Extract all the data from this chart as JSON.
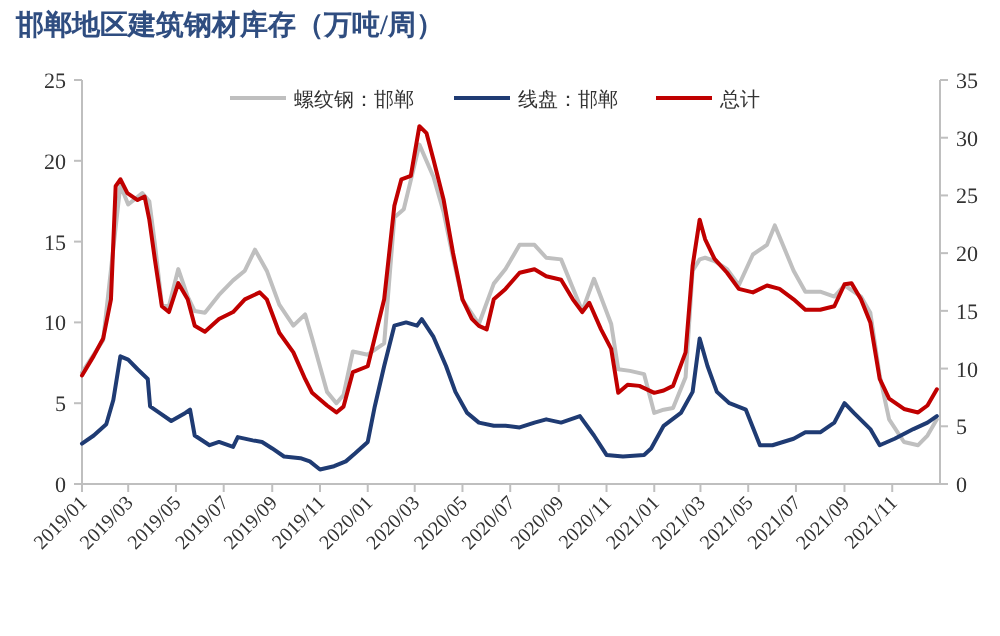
{
  "chart_data": {
    "type": "line",
    "title": "邯郸地区建筑钢材库存（万吨/周）",
    "xlim": [
      "2019-01-01",
      "2022-01-01"
    ],
    "xticks": [
      {
        "value": "2019-01",
        "label": "2019/01"
      },
      {
        "value": "2019-03",
        "label": "2019/03"
      },
      {
        "value": "2019-05",
        "label": "2019/05"
      },
      {
        "value": "2019-07",
        "label": "2019/07"
      },
      {
        "value": "2019-09",
        "label": "2019/09"
      },
      {
        "value": "2019-11",
        "label": "2019/11"
      },
      {
        "value": "2020-01",
        "label": "2020/01"
      },
      {
        "value": "2020-03",
        "label": "2020/03"
      },
      {
        "value": "2020-05",
        "label": "2020/05"
      },
      {
        "value": "2020-07",
        "label": "2020/07"
      },
      {
        "value": "2020-09",
        "label": "2020/09"
      },
      {
        "value": "2020-11",
        "label": "2020/11"
      },
      {
        "value": "2021-01",
        "label": "2021/01"
      },
      {
        "value": "2021-03",
        "label": "2021/03"
      },
      {
        "value": "2021-05",
        "label": "2021/05"
      },
      {
        "value": "2021-07",
        "label": "2021/07"
      },
      {
        "value": "2021-09",
        "label": "2021/09"
      },
      {
        "value": "2021-11",
        "label": "2021/11"
      }
    ],
    "ylim": [
      0,
      25
    ],
    "yticks": [
      0,
      5,
      10,
      15,
      20,
      25
    ],
    "y2lim": [
      0,
      35
    ],
    "y2ticks": [
      0,
      5,
      10,
      15,
      20,
      25,
      30,
      35
    ],
    "legend": "top",
    "grid": false,
    "series": [
      {
        "name": "螺纹钢：邯郸",
        "color": "#bfbfbf",
        "x": [
          "2019-01-01",
          "2019-01-28",
          "2019-02-19",
          "2019-03-01",
          "2019-03-19",
          "2019-03-28",
          "2019-04-04",
          "2019-04-13",
          "2019-04-22",
          "2019-05-04",
          "2019-05-16",
          "2019-05-25",
          "2019-06-07",
          "2019-06-25",
          "2019-07-13",
          "2019-07-28",
          "2019-08-10",
          "2019-08-25",
          "2019-09-10",
          "2019-09-28",
          "2019-10-13",
          "2019-10-22",
          "2019-11-10",
          "2019-11-22",
          "2019-12-01",
          "2019-12-13",
          "2020-01-01",
          "2020-01-22",
          "2020-02-04",
          "2020-02-16",
          "2020-03-07",
          "2020-03-25",
          "2020-04-07",
          "2020-04-19",
          "2020-05-01",
          "2020-05-22",
          "2020-06-10",
          "2020-06-25",
          "2020-07-13",
          "2020-08-01",
          "2020-08-16",
          "2020-09-04",
          "2020-10-01",
          "2020-10-16",
          "2020-11-07",
          "2020-11-16",
          "2020-12-01",
          "2020-12-19",
          "2021-01-01",
          "2021-01-13",
          "2021-01-25",
          "2021-02-10",
          "2021-02-19",
          "2021-02-28",
          "2021-03-07",
          "2021-03-19",
          "2021-04-04",
          "2021-04-19",
          "2021-05-07",
          "2021-05-25",
          "2021-06-04",
          "2021-06-28",
          "2021-07-13",
          "2021-08-01",
          "2021-08-19",
          "2021-09-01",
          "2021-09-22",
          "2021-10-04",
          "2021-10-16",
          "2021-10-28",
          "2021-11-16",
          "2021-12-04",
          "2021-12-16",
          "2021-12-28"
        ],
        "values": [
          6.9,
          8.9,
          18.5,
          17.3,
          18.0,
          17.5,
          14.9,
          11.1,
          11.0,
          13.3,
          11.6,
          10.7,
          10.6,
          11.7,
          12.6,
          13.2,
          14.5,
          13.2,
          11.1,
          9.8,
          10.5,
          9.0,
          5.7,
          5.0,
          5.5,
          8.2,
          8.0,
          8.7,
          16.5,
          17.0,
          21.0,
          19.0,
          16.8,
          14.0,
          11.4,
          9.9,
          12.4,
          13.3,
          14.8,
          14.8,
          14.0,
          13.9,
          10.7,
          12.7,
          9.9,
          7.1,
          7.0,
          6.8,
          4.4,
          4.6,
          4.7,
          6.6,
          13.2,
          13.9,
          14.0,
          13.8,
          13.3,
          12.3,
          14.2,
          14.8,
          16.0,
          13.2,
          11.9,
          11.9,
          11.6,
          12.3,
          11.6,
          10.6,
          6.7,
          4.0,
          2.6,
          2.4,
          3.0,
          4.0
        ]
      },
      {
        "name": "线盘：邯郸",
        "color": "#1f3b73",
        "x": [
          "2019-01-01",
          "2019-01-16",
          "2019-02-01",
          "2019-02-10",
          "2019-02-19",
          "2019-03-01",
          "2019-03-13",
          "2019-03-26",
          "2019-03-29",
          "2019-04-10",
          "2019-04-25",
          "2019-05-13",
          "2019-05-19",
          "2019-05-25",
          "2019-06-13",
          "2019-06-25",
          "2019-07-13",
          "2019-07-19",
          "2019-08-07",
          "2019-08-19",
          "2019-09-01",
          "2019-09-16",
          "2019-10-07",
          "2019-10-19",
          "2019-11-01",
          "2019-11-19",
          "2019-12-04",
          "2019-12-16",
          "2020-01-01",
          "2020-01-10",
          "2020-01-22",
          "2020-02-04",
          "2020-02-19",
          "2020-03-04",
          "2020-03-10",
          "2020-03-25",
          "2020-04-10",
          "2020-04-22",
          "2020-05-07",
          "2020-05-22",
          "2020-06-10",
          "2020-06-25",
          "2020-07-13",
          "2020-08-01",
          "2020-08-16",
          "2020-09-04",
          "2020-09-28",
          "2020-10-16",
          "2020-11-01",
          "2020-11-22",
          "2020-12-19",
          "2020-12-28",
          "2021-01-13",
          "2021-02-04",
          "2021-02-19",
          "2021-02-28",
          "2021-03-10",
          "2021-03-22",
          "2021-04-07",
          "2021-04-28",
          "2021-05-16",
          "2021-06-01",
          "2021-06-28",
          "2021-07-13",
          "2021-08-01",
          "2021-08-19",
          "2021-09-01",
          "2021-09-13",
          "2021-10-04",
          "2021-10-16",
          "2021-11-04",
          "2021-11-28",
          "2021-12-16",
          "2021-12-28"
        ],
        "values": [
          2.5,
          3.0,
          3.7,
          5.2,
          7.9,
          7.7,
          7.1,
          6.5,
          4.8,
          4.4,
          3.9,
          4.4,
          4.6,
          3.0,
          2.4,
          2.6,
          2.3,
          2.9,
          2.7,
          2.6,
          2.2,
          1.7,
          1.6,
          1.4,
          0.9,
          1.1,
          1.4,
          1.9,
          2.6,
          4.8,
          7.3,
          9.8,
          10.0,
          9.8,
          10.2,
          9.1,
          7.3,
          5.7,
          4.4,
          3.8,
          3.6,
          3.6,
          3.5,
          3.8,
          4.0,
          3.8,
          4.2,
          3.0,
          1.8,
          1.7,
          1.8,
          2.2,
          3.6,
          4.4,
          5.7,
          9.0,
          7.3,
          5.7,
          5.0,
          4.6,
          2.4,
          2.4,
          2.8,
          3.2,
          3.2,
          3.8,
          5.0,
          4.4,
          3.4,
          2.4,
          2.8,
          3.4,
          3.8,
          4.2
        ]
      },
      {
        "name": "总计",
        "color": "#c00000",
        "axis": "y2",
        "x": [
          "2019-01-01",
          "2019-01-16",
          "2019-01-28",
          "2019-02-07",
          "2019-02-13",
          "2019-02-19",
          "2019-02-28",
          "2019-03-13",
          "2019-03-22",
          "2019-03-28",
          "2019-04-04",
          "2019-04-13",
          "2019-04-22",
          "2019-05-04",
          "2019-05-16",
          "2019-05-25",
          "2019-06-07",
          "2019-06-25",
          "2019-07-13",
          "2019-07-28",
          "2019-08-16",
          "2019-08-25",
          "2019-09-10",
          "2019-09-28",
          "2019-10-13",
          "2019-10-22",
          "2019-11-10",
          "2019-11-22",
          "2019-12-01",
          "2019-12-13",
          "2020-01-01",
          "2020-01-22",
          "2020-02-04",
          "2020-02-13",
          "2020-02-25",
          "2020-03-07",
          "2020-03-16",
          "2020-03-25",
          "2020-04-07",
          "2020-04-19",
          "2020-05-01",
          "2020-05-13",
          "2020-05-22",
          "2020-06-01",
          "2020-06-10",
          "2020-06-25",
          "2020-07-13",
          "2020-08-01",
          "2020-08-16",
          "2020-09-04",
          "2020-09-19",
          "2020-10-01",
          "2020-10-10",
          "2020-10-25",
          "2020-11-07",
          "2020-11-16",
          "2020-11-28",
          "2020-12-13",
          "2021-01-01",
          "2021-01-13",
          "2021-01-25",
          "2021-02-10",
          "2021-02-19",
          "2021-02-28",
          "2021-03-07",
          "2021-03-19",
          "2021-04-04",
          "2021-04-19",
          "2021-05-07",
          "2021-05-25",
          "2021-06-10",
          "2021-06-28",
          "2021-07-13",
          "2021-08-01",
          "2021-08-19",
          "2021-09-01",
          "2021-09-10",
          "2021-09-22",
          "2021-10-04",
          "2021-10-16",
          "2021-10-28",
          "2021-11-16",
          "2021-12-04",
          "2021-12-16",
          "2021-12-28"
        ],
        "values": [
          9.4,
          11.1,
          12.6,
          16.0,
          25.8,
          26.4,
          25.2,
          24.6,
          24.9,
          22.9,
          19.5,
          15.4,
          14.9,
          17.4,
          16.0,
          13.7,
          13.2,
          14.3,
          14.9,
          16.0,
          16.6,
          16.0,
          13.1,
          11.4,
          9.1,
          7.9,
          6.8,
          6.2,
          6.7,
          9.7,
          10.2,
          16.0,
          24.1,
          26.4,
          26.7,
          31.0,
          30.4,
          28.1,
          24.6,
          20.0,
          16.0,
          14.3,
          13.7,
          13.4,
          16.0,
          16.9,
          18.3,
          18.6,
          18.0,
          17.7,
          16.0,
          14.9,
          15.7,
          13.4,
          11.7,
          7.9,
          8.6,
          8.5,
          7.9,
          8.1,
          8.5,
          11.4,
          18.9,
          22.9,
          21.2,
          19.5,
          18.3,
          16.9,
          16.6,
          17.2,
          16.9,
          16.0,
          15.1,
          15.1,
          15.4,
          17.3,
          17.4,
          16.0,
          14.0,
          9.1,
          7.4,
          6.5,
          6.2,
          6.8,
          8.2
        ]
      }
    ]
  }
}
